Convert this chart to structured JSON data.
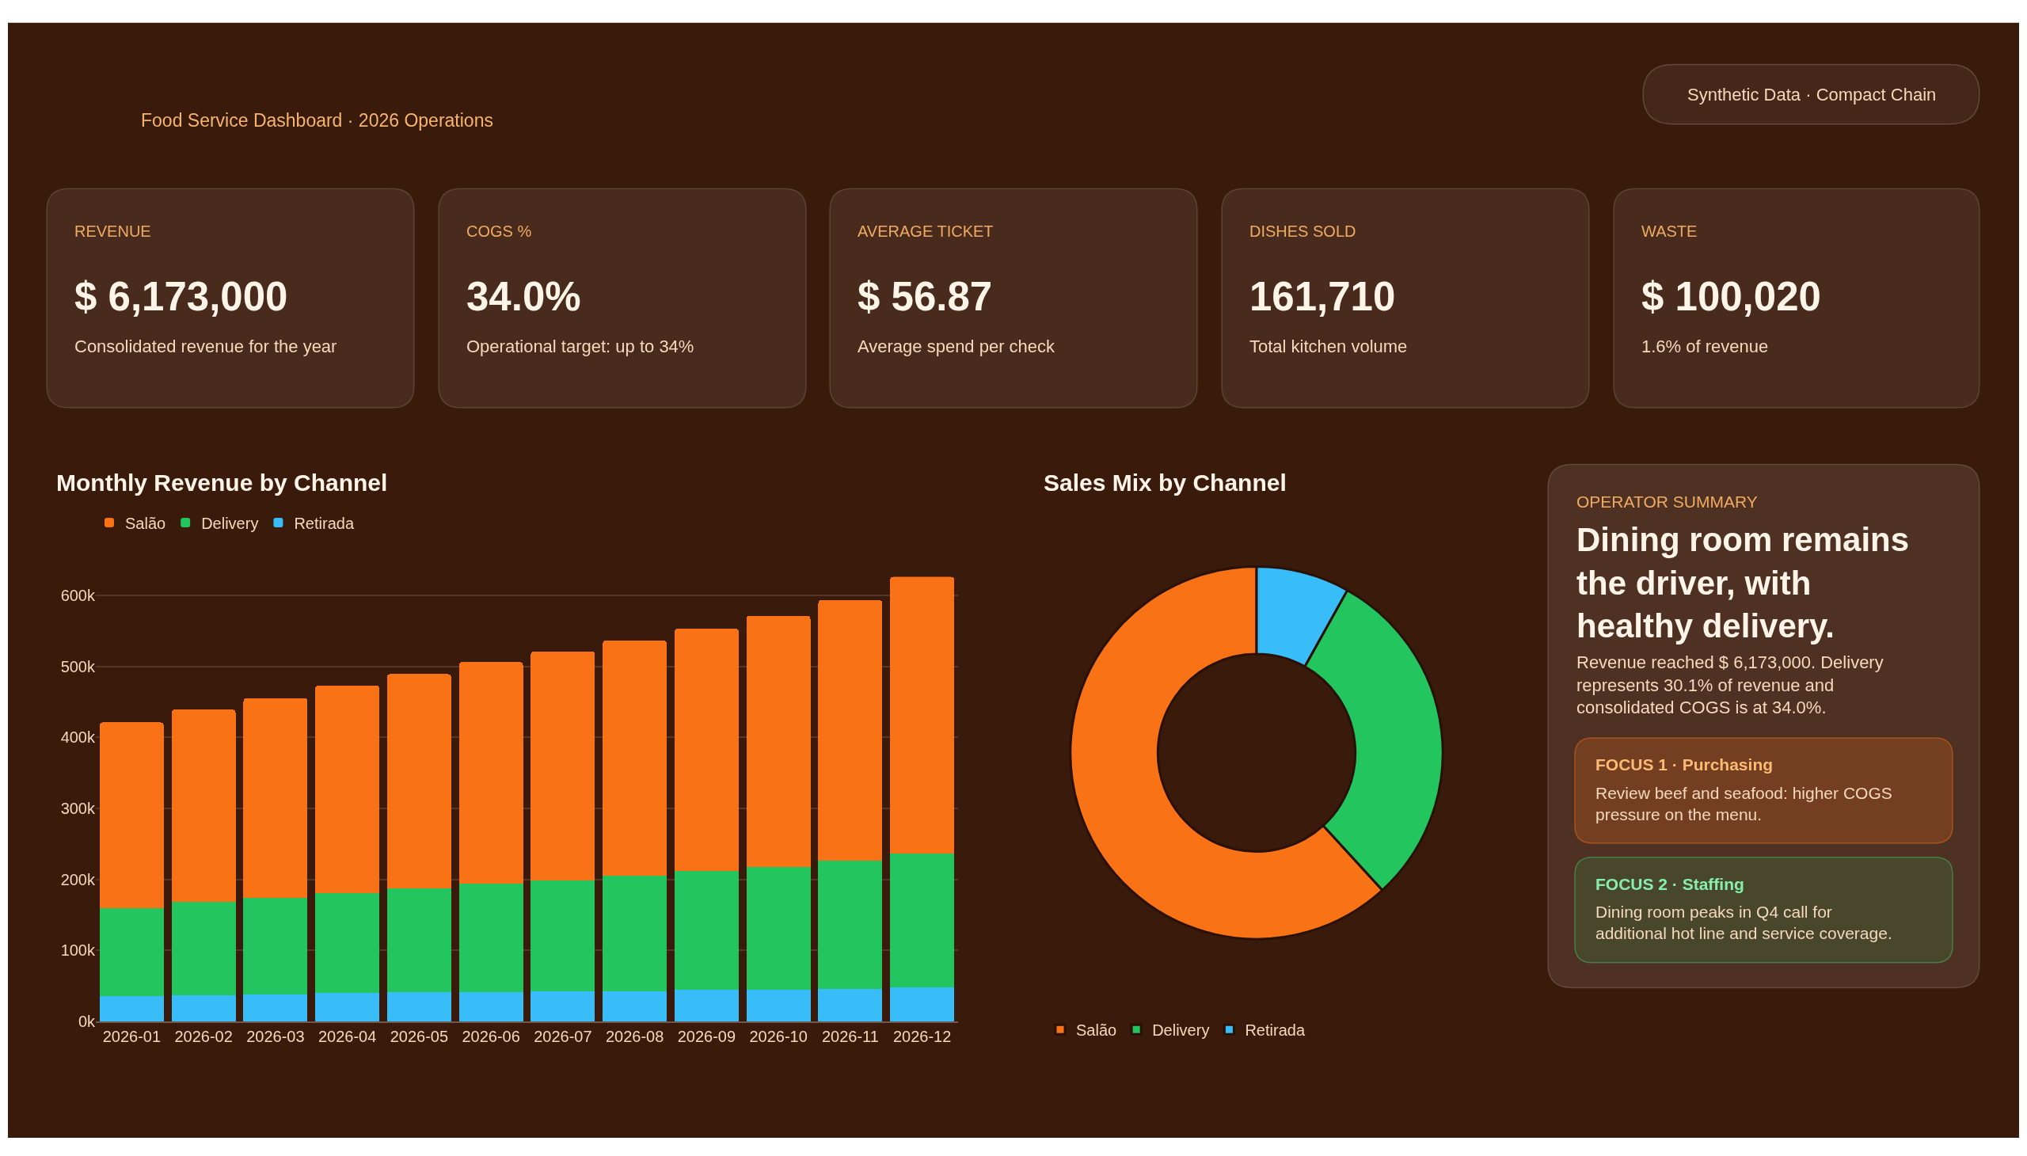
{
  "chart_data": [
    {
      "type": "other",
      "subtitle": "Food Service Dashboard · 2026 Operations",
      "annotations": [
        "Synthetic Data · Compact Chain"
      ]
    },
    {
      "type": "other",
      "title": "REVENUE",
      "annotations": [
        "$ 6,173,000",
        "Consolidated revenue for the year"
      ]
    },
    {
      "type": "other",
      "title": "COGS %",
      "annotations": [
        "34.0%",
        "Operational target: up to 34%"
      ]
    },
    {
      "type": "other",
      "title": "AVERAGE TICKET",
      "annotations": [
        "$ 56.87",
        "Average spend per check"
      ]
    },
    {
      "type": "other",
      "title": "DISHES SOLD",
      "annotations": [
        "161,710",
        "Total kitchen volume"
      ]
    },
    {
      "type": "other",
      "title": "WASTE",
      "annotations": [
        "$ 100,020",
        "1.6% of revenue"
      ]
    },
    {
      "type": "bar",
      "title": "Monthly Revenue by Channel",
      "stacked": true,
      "categories": [
        "2026-01",
        "2026-02",
        "2026-03",
        "2026-04",
        "2026-05",
        "2026-06",
        "2026-07",
        "2026-08",
        "2026-09",
        "2026-10",
        "2026-11",
        "2026-12"
      ],
      "series": [
        {
          "name": "Retirada",
          "color": "#38bdf8",
          "values": [
            36000,
            37000,
            38000,
            40000,
            41000,
            42000,
            43000,
            43000,
            45000,
            45000,
            46000,
            48000
          ]
        },
        {
          "name": "Delivery",
          "color": "#22c55e",
          "values": [
            124000,
            132000,
            136000,
            141000,
            147000,
            152000,
            156000,
            162000,
            167000,
            172000,
            180000,
            188000
          ]
        },
        {
          "name": "Salão",
          "color": "#f97316",
          "values": [
            261000,
            270000,
            281000,
            292000,
            301000,
            312000,
            322000,
            331000,
            341000,
            354000,
            367000,
            390000
          ]
        }
      ],
      "ylim": [
        0,
        626000
      ],
      "yticks": [
        {
          "value": 0,
          "label": "0k"
        },
        {
          "value": 100000,
          "label": "100k"
        },
        {
          "value": 200000,
          "label": "200k"
        },
        {
          "value": 300000,
          "label": "300k"
        },
        {
          "value": 400000,
          "label": "400k"
        },
        {
          "value": 500000,
          "label": "500k"
        },
        {
          "value": 600000,
          "label": "600k"
        }
      ],
      "grid": "y",
      "legend": "top left"
    },
    {
      "type": "donut",
      "title": "Sales Mix by Channel",
      "categories": [
        "Salão",
        "Delivery",
        "Retirada"
      ],
      "values": [
        61.8,
        30.1,
        8.1
      ],
      "colors": [
        "#f97316",
        "#22c55e",
        "#38bdf8"
      ],
      "legend": "bottom left"
    },
    {
      "type": "other",
      "title": "OPERATOR SUMMARY",
      "subtitle": "Dining room remains the driver, with healthy delivery.",
      "annotations": [
        "Revenue reached $ 6,173,000. Delivery represents 30.1% of revenue and consolidated COGS is at 34.0%.",
        "FOCUS 1 · Purchasing",
        "Review beef and seafood: higher COGS pressure on the menu.",
        "FOCUS 2 · Staffing",
        "Dining room peaks in Q4 call for additional hot line and service coverage."
      ]
    }
  ]
}
